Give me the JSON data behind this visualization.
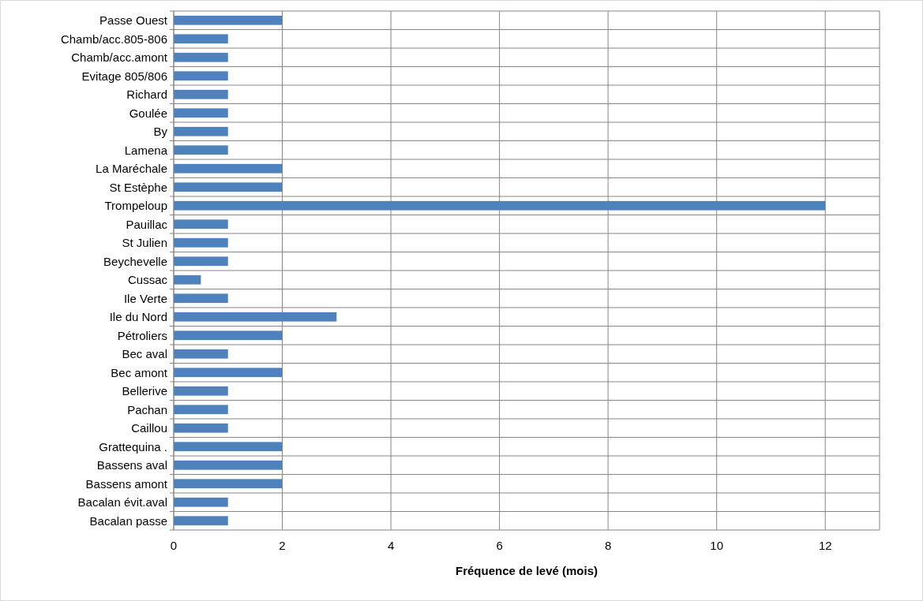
{
  "chart_data": {
    "type": "bar",
    "orientation": "horizontal",
    "xlabel": "Fréquence de levé (mois)",
    "categories": [
      "Passe Ouest",
      "Chamb/acc.805-806",
      "Chamb/acc.amont",
      "Evitage 805/806",
      "Richard",
      "Goulée",
      "By",
      "Lamena",
      "La Maréchale",
      "St Estèphe",
      "Trompeloup",
      "Pauillac",
      "St Julien",
      "Beychevelle",
      "Cussac",
      "Ile Verte",
      "Ile du Nord",
      "Pétroliers",
      "Bec aval",
      "Bec amont",
      "Bellerive",
      "Pachan",
      "Caillou",
      "Grattequina .",
      "Bassens aval",
      "Bassens amont",
      "Bacalan évit.aval",
      "Bacalan passe"
    ],
    "values": [
      2,
      1,
      1,
      1,
      1,
      1,
      1,
      1,
      2,
      2,
      12,
      1,
      1,
      1,
      0.5,
      1,
      3,
      2,
      1,
      2,
      1,
      1,
      1,
      2,
      2,
      2,
      1,
      1
    ],
    "color": "#4f81bd",
    "xlim": [
      0,
      13
    ],
    "xticks": [
      0,
      2,
      4,
      6,
      8,
      10,
      12
    ],
    "grid": true
  }
}
